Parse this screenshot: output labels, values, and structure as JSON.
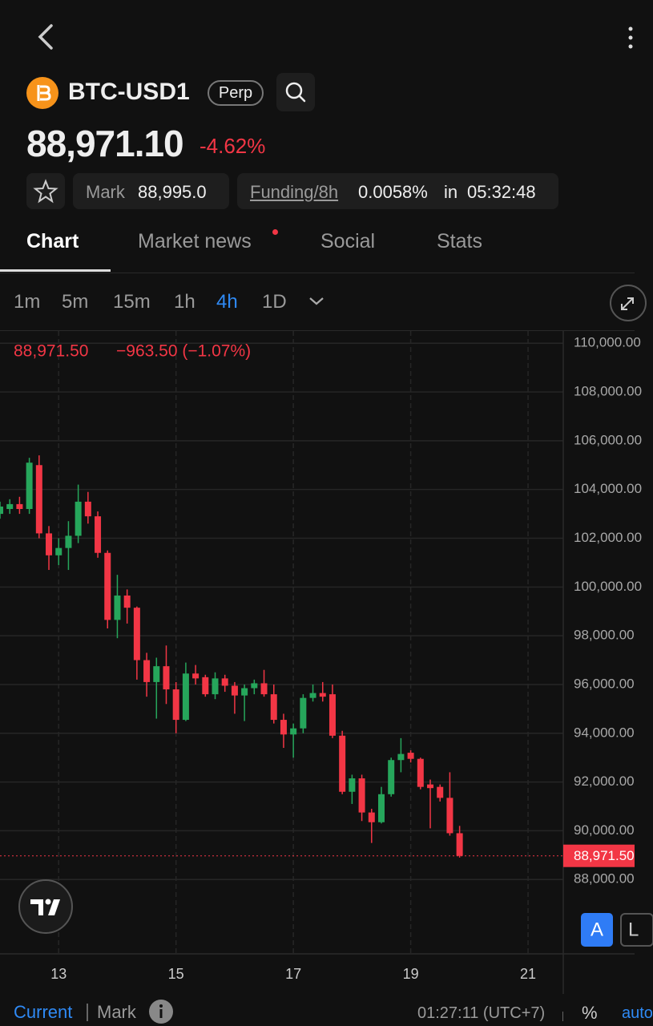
{
  "header": {
    "symbol": "BTC-USD1",
    "badge": "Perp",
    "price": "88,971.10",
    "change": "-4.62%",
    "mark_label": "Mark",
    "mark_value": "88,995.0",
    "funding_label": "Funding/8h",
    "funding_value": "0.0058%",
    "funding_in": "in",
    "funding_countdown": "05:32:48"
  },
  "tabs": [
    "Chart",
    "Market news",
    "Social",
    "Stats"
  ],
  "intervals": [
    "1m",
    "5m",
    "15m",
    "1h",
    "4h",
    "1D"
  ],
  "chart_data": {
    "type": "candlestick",
    "legend_price": "88,971.50",
    "legend_change": "−963.50 (−1.07%)",
    "x": [
      12,
      12.1667,
      12.3333,
      12.5,
      12.6667,
      12.8333,
      13,
      13.1667,
      13.3333,
      13.5,
      13.6667,
      13.8333,
      14,
      14.1667,
      14.3333,
      14.5,
      14.6667,
      14.8333,
      15,
      15.1667,
      15.3333,
      15.5,
      15.6667,
      15.8333,
      16,
      16.1667,
      16.3333,
      16.5,
      16.6667,
      16.8333,
      17,
      17.1667,
      17.3333,
      17.5,
      17.6667,
      17.8333,
      18,
      18.1667,
      18.3333,
      18.5,
      18.6667,
      18.8333,
      19,
      19.1667,
      19.3333,
      19.5,
      19.6667,
      19.8333
    ],
    "open": [
      103000,
      103200,
      103400,
      103200,
      105000,
      102200,
      101300,
      101600,
      102100,
      103500,
      102900,
      101400,
      98650,
      99650,
      99150,
      97000,
      96100,
      96750,
      95800,
      94550,
      96450,
      96300,
      95600,
      96250,
      95950,
      95550,
      95850,
      96050,
      95600,
      94550,
      93950,
      94200,
      95450,
      95650,
      95600,
      93900,
      91600,
      92150,
      90750,
      90350,
      91500,
      92900,
      93200,
      92950,
      91900,
      91800,
      91350,
      89900
    ],
    "high": [
      103500,
      103600,
      103700,
      105300,
      105400,
      102500,
      102000,
      102700,
      104200,
      103900,
      103100,
      101500,
      100500,
      99900,
      99200,
      97300,
      97100,
      97600,
      96100,
      96900,
      96800,
      96400,
      96500,
      96400,
      96100,
      96000,
      96200,
      96600,
      96000,
      94800,
      94400,
      95600,
      96000,
      96100,
      96000,
      94100,
      92300,
      92300,
      90900,
      91800,
      93000,
      93800,
      93300,
      93000,
      92100,
      91900,
      92400,
      90200
    ],
    "low": [
      102800,
      103000,
      103000,
      103000,
      102000,
      100700,
      100900,
      100700,
      101800,
      102600,
      101200,
      98300,
      97900,
      98500,
      96200,
      95500,
      94600,
      95200,
      94000,
      94500,
      96000,
      95500,
      95400,
      95700,
      94800,
      94500,
      95600,
      95500,
      94400,
      93400,
      93000,
      94000,
      95300,
      95300,
      93800,
      91500,
      91100,
      90400,
      89500,
      90300,
      91400,
      92400,
      92800,
      91700,
      90100,
      91200,
      89800,
      88900
    ],
    "close": [
      103300,
      103400,
      103200,
      105100,
      102200,
      101300,
      101600,
      102100,
      103500,
      102900,
      101400,
      98650,
      99650,
      99150,
      97000,
      96100,
      96750,
      95800,
      94550,
      96450,
      96250,
      95600,
      96250,
      95950,
      95550,
      95850,
      96050,
      95600,
      94550,
      93950,
      94200,
      95450,
      95650,
      95500,
      93900,
      91600,
      92150,
      90750,
      90350,
      91500,
      92900,
      93150,
      92950,
      91800,
      91750,
      91350,
      89900,
      88971.5
    ],
    "up_color": "#26a65b",
    "down_color": "#f23645",
    "last_price": {
      "value": 88971.5,
      "label": "88,971.50"
    },
    "xlim": [
      12,
      21.6
    ],
    "xticks": [
      13,
      15,
      17,
      19,
      21
    ],
    "ylim": [
      84950,
      110500
    ],
    "yticks": [
      {
        "value": 110000,
        "label": "110,000.00"
      },
      {
        "value": 108000,
        "label": "108,000.00"
      },
      {
        "value": 106000,
        "label": "106,000.00"
      },
      {
        "value": 104000,
        "label": "104,000.00"
      },
      {
        "value": 102000,
        "label": "102,000.00"
      },
      {
        "value": 100000,
        "label": "100,000.00"
      },
      {
        "value": 98000,
        "label": "98,000.00"
      },
      {
        "value": 96000,
        "label": "96,000.00"
      },
      {
        "value": 94000,
        "label": "94,000.00"
      },
      {
        "value": 92000,
        "label": "92,000.00"
      },
      {
        "value": 90000,
        "label": "90,000.00"
      },
      {
        "value": 88000,
        "label": "88,000.00"
      }
    ],
    "grid": true
  },
  "footer": {
    "current": "Current",
    "mark": "Mark",
    "time": "01:27:11 (UTC+7)",
    "percent": "%",
    "auto": "auto",
    "scale_buttons": [
      "A",
      "L"
    ]
  }
}
